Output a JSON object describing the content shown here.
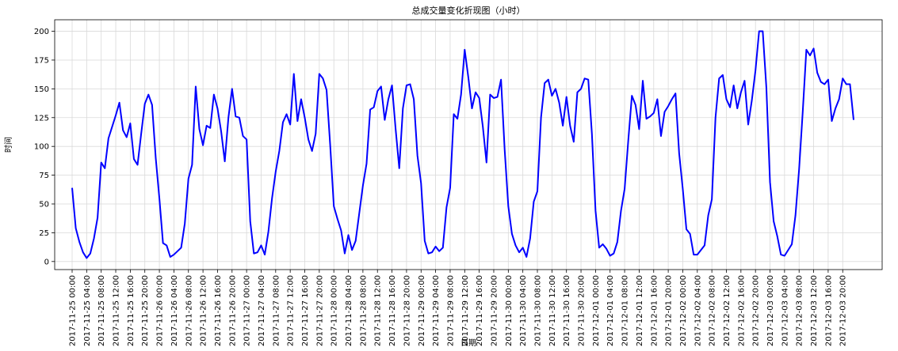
{
  "chart_data": {
    "type": "line",
    "title": "总成交量变化折现图（小时）",
    "xlabel": "日期",
    "ylabel": "时间",
    "ylim": [
      -7,
      210
    ],
    "yticks": [
      0,
      25,
      50,
      75,
      100,
      125,
      150,
      175,
      200
    ],
    "grid": true,
    "line_color": "#0000ff",
    "x_start_index": 0,
    "x_tick_step": 4,
    "xtick_labels": [
      "2017-11-25 00:00",
      "2017-11-25 04:00",
      "2017-11-25 08:00",
      "2017-11-25 12:00",
      "2017-11-25 16:00",
      "2017-11-25 20:00",
      "2017-11-26 00:00",
      "2017-11-26 04:00",
      "2017-11-26 08:00",
      "2017-11-26 12:00",
      "2017-11-26 16:00",
      "2017-11-26 20:00",
      "2017-11-27 00:00",
      "2017-11-27 04:00",
      "2017-11-27 08:00",
      "2017-11-27 12:00",
      "2017-11-27 16:00",
      "2017-11-27 20:00",
      "2017-11-28 00:00",
      "2017-11-28 04:00",
      "2017-11-28 08:00",
      "2017-11-28 12:00",
      "2017-11-28 16:00",
      "2017-11-28 20:00",
      "2017-11-29 00:00",
      "2017-11-29 04:00",
      "2017-11-29 08:00",
      "2017-11-29 12:00",
      "2017-11-29 16:00",
      "2017-11-29 20:00",
      "2017-11-30 00:00",
      "2017-11-30 04:00",
      "2017-11-30 08:00",
      "2017-11-30 12:00",
      "2017-11-30 16:00",
      "2017-11-30 20:00",
      "2017-12-01 00:00",
      "2017-12-01 04:00",
      "2017-12-01 08:00",
      "2017-12-01 12:00",
      "2017-12-01 16:00",
      "2017-12-01 20:00",
      "2017-12-02 00:00",
      "2017-12-02 04:00",
      "2017-12-02 08:00",
      "2017-12-02 12:00",
      "2017-12-02 16:00",
      "2017-12-02 20:00",
      "2017-12-03 00:00",
      "2017-12-03 04:00",
      "2017-12-03 08:00",
      "2017-12-03 12:00",
      "2017-12-03 16:00",
      "2017-12-03 20:00"
    ],
    "values": [
      64,
      29,
      17,
      8,
      3,
      7,
      20,
      38,
      86,
      81,
      107,
      117,
      127,
      138,
      114,
      108,
      120,
      89,
      84,
      111,
      137,
      145,
      136,
      90,
      55,
      16,
      14,
      4,
      6,
      9,
      12,
      33,
      72,
      84,
      152,
      115,
      101,
      118,
      116,
      145,
      133,
      113,
      87,
      125,
      150,
      126,
      125,
      109,
      106,
      35,
      7,
      8,
      14,
      6,
      26,
      55,
      78,
      96,
      121,
      128,
      119,
      163,
      122,
      141,
      125,
      106,
      96,
      111,
      163,
      159,
      149,
      101,
      48,
      37,
      27,
      7,
      23,
      10,
      18,
      42,
      66,
      85,
      132,
      134,
      148,
      152,
      123,
      141,
      153,
      115,
      81,
      133,
      153,
      154,
      141,
      92,
      68,
      18,
      7,
      8,
      13,
      9,
      12,
      47,
      64,
      128,
      124,
      145,
      184,
      160,
      133,
      147,
      142,
      117,
      86,
      145,
      142,
      143,
      158,
      97,
      48,
      24,
      14,
      8,
      12,
      4,
      20,
      52,
      61,
      125,
      155,
      158,
      144,
      150,
      138,
      118,
      143,
      118,
      104,
      147,
      150,
      159,
      158,
      111,
      44,
      12,
      15,
      11,
      5,
      7,
      17,
      44,
      63,
      105,
      144,
      136,
      115,
      157,
      124,
      126,
      129,
      141,
      109,
      130,
      135,
      141,
      146,
      94,
      63,
      28,
      24,
      6,
      6,
      10,
      14,
      40,
      54,
      125,
      159,
      162,
      141,
      134,
      153,
      133,
      147,
      157,
      119,
      140,
      166,
      200,
      200,
      151,
      69,
      35,
      22,
      6,
      5,
      10,
      15,
      40,
      80,
      130,
      184,
      179,
      185,
      164,
      156,
      154,
      158,
      122,
      133,
      141,
      159,
      154,
      154,
      123
    ]
  }
}
